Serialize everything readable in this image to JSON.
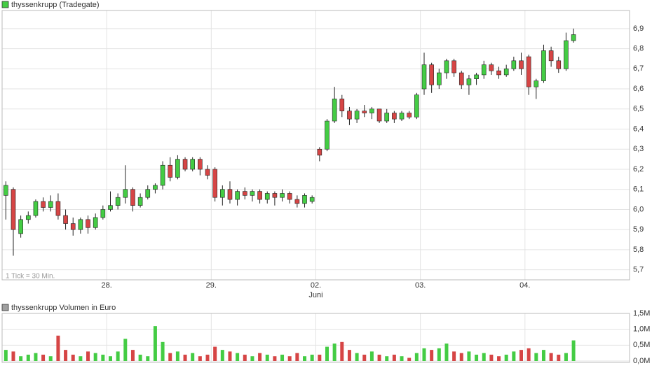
{
  "chart_data": [
    {
      "type": "candlestick",
      "title": "thyssenkrupp (Tradegate)",
      "legend_color": "#44cc44",
      "annotation": "1 Tick = 30 Min.",
      "x_sublabel": "Juni",
      "up_color": "#44cc44",
      "down_color": "#d64545",
      "grid": true,
      "x": [
        1,
        3,
        5,
        7,
        9,
        11,
        13,
        15,
        17,
        19,
        21,
        23,
        25,
        27,
        29,
        31,
        33,
        35,
        37,
        39,
        41,
        43,
        45,
        47,
        49,
        51,
        53,
        55,
        57,
        59,
        61,
        63,
        65,
        67,
        69,
        71,
        73,
        75,
        77,
        79,
        81,
        83,
        85,
        87,
        89,
        91,
        93,
        95,
        97,
        99,
        101,
        103,
        105,
        107,
        109,
        111,
        113,
        115,
        117,
        119,
        121,
        123,
        125,
        127,
        129,
        131,
        133,
        135,
        137,
        139,
        141,
        143,
        145,
        147,
        149,
        151,
        153
      ],
      "open": [
        6.07,
        6.1,
        5.88,
        5.95,
        5.97,
        6.04,
        6.01,
        6.04,
        5.97,
        5.93,
        5.9,
        5.95,
        5.91,
        5.96,
        6.0,
        6.02,
        6.06,
        6.1,
        6.02,
        6.06,
        6.1,
        6.12,
        6.22,
        6.16,
        6.25,
        6.2,
        6.25,
        6.2,
        6.2,
        6.06,
        6.1,
        6.05,
        6.09,
        6.07,
        6.09,
        6.05,
        6.08,
        6.06,
        6.08,
        6.05,
        6.03,
        6.04,
        6.3,
        6.3,
        6.44,
        6.55,
        6.49,
        6.45,
        6.49,
        6.48,
        6.5,
        6.44,
        6.48,
        6.45,
        6.48,
        6.46,
        6.6,
        6.72,
        6.62,
        6.68,
        6.74,
        6.68,
        6.62,
        6.65,
        6.67,
        6.72,
        6.69,
        6.67,
        6.7,
        6.74,
        6.76,
        6.61,
        6.64,
        6.79,
        6.74,
        6.7,
        6.84
      ],
      "high": [
        6.14,
        6.11,
        5.97,
        5.99,
        6.05,
        6.06,
        6.07,
        6.08,
        6.0,
        5.96,
        5.96,
        5.97,
        5.98,
        6.02,
        6.09,
        6.08,
        6.22,
        6.11,
        6.08,
        6.12,
        6.13,
        6.24,
        6.26,
        6.27,
        6.26,
        6.26,
        6.26,
        6.22,
        6.21,
        6.12,
        6.14,
        6.1,
        6.11,
        6.1,
        6.1,
        6.09,
        6.09,
        6.1,
        6.09,
        6.07,
        6.08,
        6.07,
        6.31,
        6.45,
        6.61,
        6.57,
        6.51,
        6.5,
        6.52,
        6.51,
        6.5,
        6.5,
        6.49,
        6.49,
        6.49,
        6.58,
        6.78,
        6.73,
        6.7,
        6.75,
        6.75,
        6.69,
        6.67,
        6.68,
        6.74,
        6.73,
        6.71,
        6.72,
        6.76,
        6.78,
        6.77,
        6.65,
        6.82,
        6.81,
        6.76,
        6.88,
        6.9
      ],
      "low": [
        5.95,
        5.77,
        5.86,
        5.93,
        5.96,
        5.99,
        5.99,
        5.95,
        5.9,
        5.87,
        5.88,
        5.88,
        5.9,
        5.95,
        5.99,
        6.0,
        6.03,
        5.99,
        6.01,
        6.05,
        6.08,
        6.1,
        6.14,
        6.15,
        6.19,
        6.19,
        6.17,
        6.15,
        6.04,
        6.02,
        6.03,
        6.02,
        6.05,
        6.04,
        6.03,
        6.03,
        6.02,
        6.04,
        6.03,
        6.01,
        6.01,
        6.03,
        6.24,
        6.29,
        6.43,
        6.46,
        6.42,
        6.43,
        6.46,
        6.45,
        6.43,
        6.43,
        6.43,
        6.44,
        6.45,
        6.45,
        6.57,
        6.58,
        6.6,
        6.65,
        6.66,
        6.6,
        6.57,
        6.62,
        6.65,
        6.67,
        6.65,
        6.66,
        6.69,
        6.67,
        6.57,
        6.55,
        6.63,
        6.71,
        6.68,
        6.69,
        6.83
      ],
      "close": [
        6.12,
        5.9,
        5.95,
        5.97,
        6.04,
        6.01,
        6.04,
        5.97,
        5.93,
        5.9,
        5.95,
        5.91,
        5.96,
        6.0,
        6.02,
        6.06,
        6.1,
        6.02,
        6.06,
        6.1,
        6.12,
        6.22,
        6.16,
        6.25,
        6.2,
        6.25,
        6.2,
        6.17,
        6.06,
        6.1,
        6.05,
        6.09,
        6.07,
        6.09,
        6.05,
        6.08,
        6.06,
        6.08,
        6.05,
        6.03,
        6.07,
        6.06,
        6.27,
        6.44,
        6.55,
        6.49,
        6.45,
        6.49,
        6.48,
        6.5,
        6.44,
        6.48,
        6.45,
        6.48,
        6.46,
        6.57,
        6.72,
        6.62,
        6.68,
        6.74,
        6.68,
        6.62,
        6.65,
        6.67,
        6.72,
        6.69,
        6.67,
        6.7,
        6.74,
        6.7,
        6.61,
        6.64,
        6.79,
        6.74,
        6.7,
        6.84,
        6.87
      ],
      "xlim": [
        0,
        168
      ],
      "xticks": [
        {
          "value": 28,
          "label": "28."
        },
        {
          "value": 56,
          "label": "29."
        },
        {
          "value": 84,
          "label": "02."
        },
        {
          "value": 112,
          "label": "03."
        },
        {
          "value": 140,
          "label": "04."
        }
      ],
      "ylim": [
        5.65,
        6.99
      ],
      "yticks": [
        {
          "value": 5.7,
          "label": "5,7"
        },
        {
          "value": 5.8,
          "label": "5,8"
        },
        {
          "value": 5.9,
          "label": "5,9"
        },
        {
          "value": 6.0,
          "label": "6,0"
        },
        {
          "value": 6.1,
          "label": "6,1"
        },
        {
          "value": 6.2,
          "label": "6,2"
        },
        {
          "value": 6.3,
          "label": "6,3"
        },
        {
          "value": 6.4,
          "label": "6,4"
        },
        {
          "value": 6.5,
          "label": "6,5"
        },
        {
          "value": 6.6,
          "label": "6,6"
        },
        {
          "value": 6.7,
          "label": "6,7"
        },
        {
          "value": 6.8,
          "label": "6,8"
        },
        {
          "value": 6.9,
          "label": "6,9"
        }
      ]
    },
    {
      "type": "bar",
      "title": "thyssenkrupp Volumen in Euro",
      "legend_color": "#a0a0a0",
      "grid": true,
      "values": [
        350000,
        300000,
        150000,
        200000,
        250000,
        200000,
        150000,
        800000,
        350000,
        200000,
        150000,
        300000,
        250000,
        200000,
        150000,
        300000,
        700000,
        350000,
        200000,
        150000,
        1100000,
        600000,
        250000,
        300000,
        200000,
        250000,
        150000,
        200000,
        450000,
        350000,
        300000,
        250000,
        200000,
        150000,
        250000,
        200000,
        150000,
        200000,
        150000,
        250000,
        150000,
        200000,
        200000,
        450000,
        550000,
        600000,
        350000,
        250000,
        200000,
        300000,
        200000,
        150000,
        200000,
        150000,
        100000,
        250000,
        400000,
        350000,
        400000,
        550000,
        300000,
        250000,
        300000,
        200000,
        250000,
        200000,
        150000,
        200000,
        300000,
        350000,
        400000,
        250000,
        350000,
        250000,
        200000,
        250000,
        650000
      ],
      "ylim": [
        0,
        1500000
      ],
      "yticks": [
        {
          "value": 0,
          "label": "0,0M"
        },
        {
          "value": 500000,
          "label": "0,5M"
        },
        {
          "value": 1000000,
          "label": "1,0M"
        },
        {
          "value": 1500000,
          "label": "1,5M"
        }
      ]
    }
  ]
}
